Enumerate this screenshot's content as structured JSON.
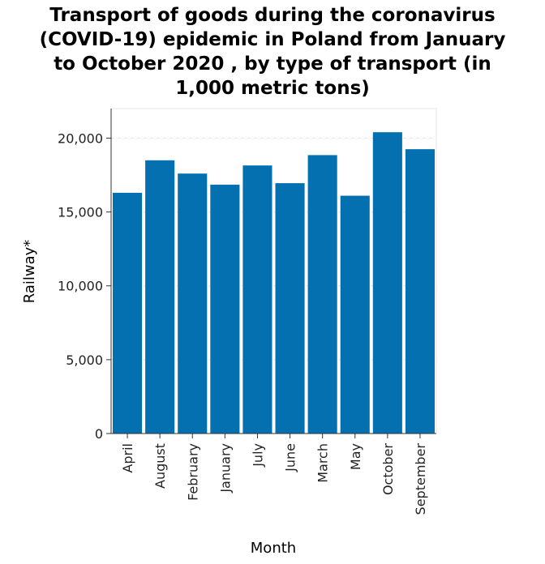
{
  "chart_data": {
    "type": "bar",
    "title": "Transport of goods during the coronavirus\n(COVID-19) epidemic in Poland from January\nto October 2020 , by type of transport (in\n1,000 metric tons)",
    "xlabel": "Month",
    "ylabel": "Railway*",
    "categories": [
      "April",
      "August",
      "February",
      "January",
      "July",
      "June",
      "March",
      "May",
      "October",
      "September"
    ],
    "series": [
      {
        "values": [
          16300,
          18500,
          17600,
          16850,
          18150,
          16950,
          18850,
          16100,
          20400,
          19250
        ]
      }
    ],
    "ylim": [
      0,
      22000
    ],
    "yticks": [
      0,
      5000,
      10000,
      15000,
      20000
    ],
    "ytick_labels": [
      "0",
      "5,000",
      "10,000",
      "15,000",
      "20,000"
    ],
    "grid": "horizontal dashed",
    "legend": "none",
    "bar_color": "#0570b0",
    "gridline_color": "#e6e6e6"
  }
}
